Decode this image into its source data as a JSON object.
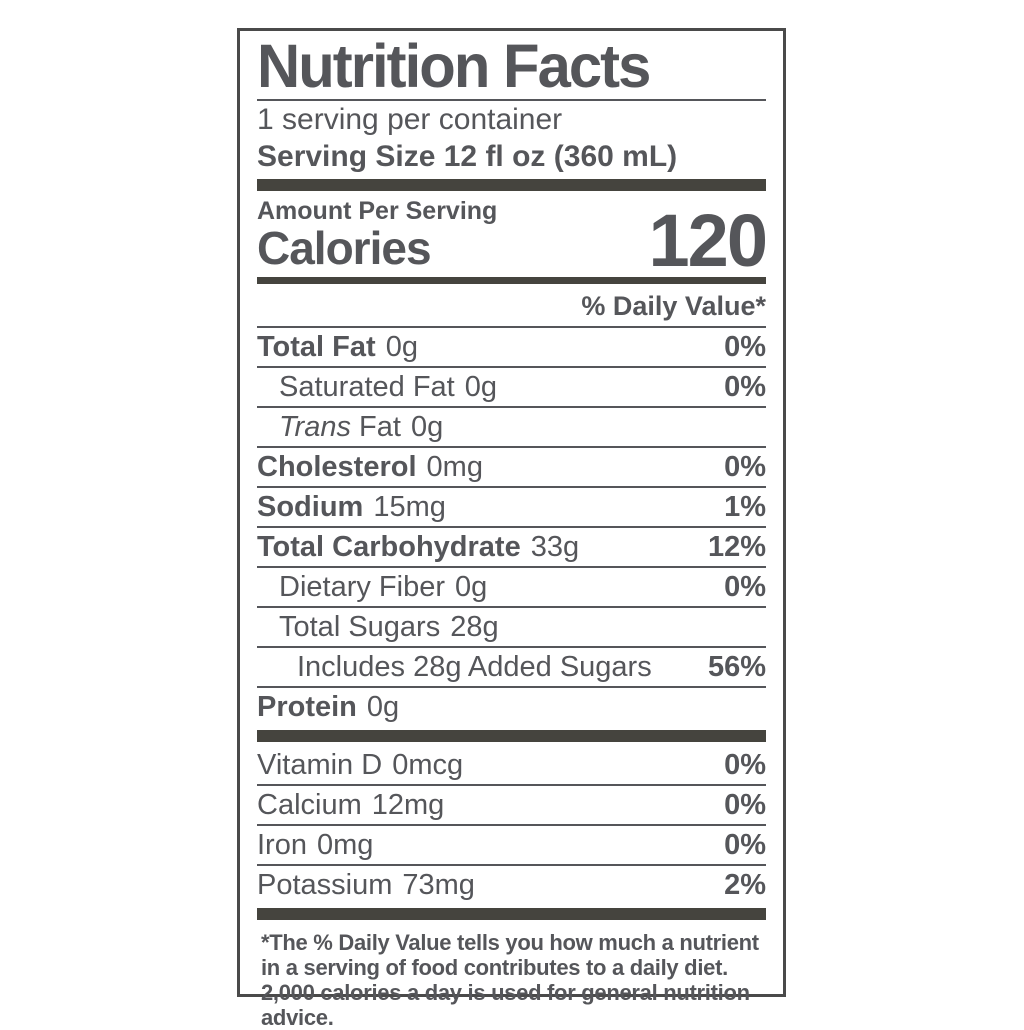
{
  "label": {
    "title": "Nutrition Facts",
    "servings_per_container": "1 serving per container",
    "serving_size": "Serving Size 12 fl oz (360 mL)",
    "amount_per_serving": "Amount Per Serving",
    "calories_label": "Calories",
    "calories_value": "120",
    "daily_value_header": "% Daily Value*",
    "nutrients": [
      {
        "name": "Total Fat",
        "amount": "0g",
        "dv": "0%"
      },
      {
        "name": "Saturated Fat",
        "amount": "0g",
        "dv": "0%"
      },
      {
        "name_italic": "Trans",
        "name_rest": "Fat",
        "amount": "0g",
        "dv": ""
      },
      {
        "name": "Cholesterol",
        "amount": "0mg",
        "dv": "0%"
      },
      {
        "name": "Sodium",
        "amount": "15mg",
        "dv": "1%"
      },
      {
        "name": "Total Carbohydrate",
        "amount": "33g",
        "dv": "12%"
      },
      {
        "name": "Dietary Fiber",
        "amount": "0g",
        "dv": "0%"
      },
      {
        "name": "Total Sugars",
        "amount": "28g",
        "dv": ""
      },
      {
        "name": "Includes 28g Added Sugars",
        "amount": "",
        "dv": "56%"
      },
      {
        "name": "Protein",
        "amount": "0g",
        "dv": ""
      }
    ],
    "vitamins": [
      {
        "name": "Vitamin D",
        "amount": "0mcg",
        "dv": "0%"
      },
      {
        "name": "Calcium",
        "amount": "12mg",
        "dv": "0%"
      },
      {
        "name": "Iron",
        "amount": "0mg",
        "dv": "0%"
      },
      {
        "name": "Potassium",
        "amount": "73mg",
        "dv": "2%"
      }
    ],
    "footnote": "*The % Daily Value tells you how much a nutrient in a serving of food contributes to a daily diet. 2,000 calories a day is used for general nutrition advice.",
    "colors": {
      "text": "#55565a",
      "bars": "#45443e",
      "border": "#4a4a4a",
      "background": "#ffffff"
    }
  }
}
